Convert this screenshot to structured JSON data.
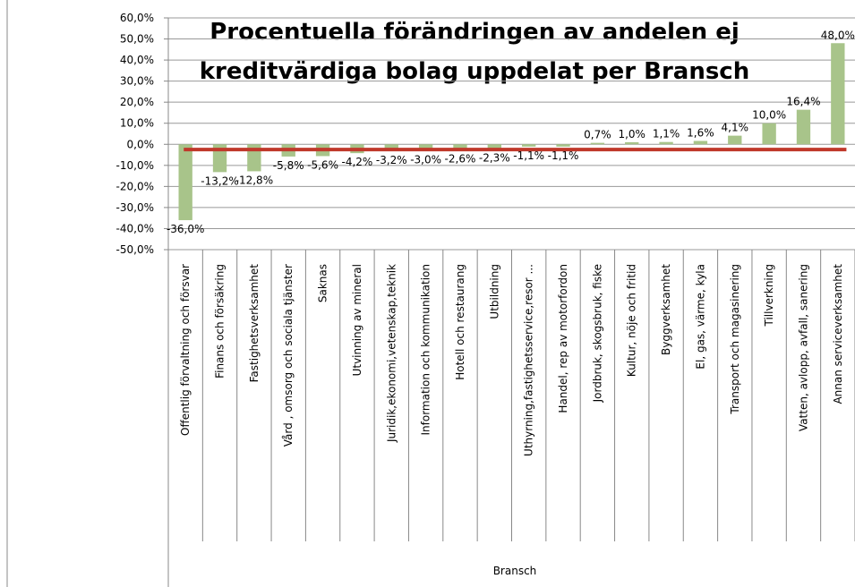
{
  "chart_data": {
    "type": "bar",
    "title": [
      "Procentuella förändringen av andelen ej",
      "kreditvärdiga bolag uppdelat per Bransch"
    ],
    "x_label": "Bransch",
    "categories": [
      "Offentlig förvaltning och försvar",
      "Finans och försäkring",
      "Fastighetsverksamhet",
      "Vård , omsorg och sociala tjänster",
      "Saknas",
      "Utvinning av mineral",
      "Juridik,ekonomi,vetenskap,teknik",
      "Information och kommunikation",
      "Hotell och restaurang",
      "Utbildning",
      "Uthyrning,fastighetsservice,resor ...",
      "Handel, rep av motorfordon",
      "Jordbruk, skogsbruk, fiske",
      "Kultur, nöje och fritid",
      "Byggverksamhet",
      "El, gas, värme, kyla",
      "Transport och magasinering",
      "Tillverkning",
      "Vatten, avlopp, avfall, sanering",
      "Annan serviceverksamhet"
    ],
    "values": [
      -36.0,
      -13.2,
      -12.8,
      -5.8,
      -5.6,
      -4.2,
      -3.2,
      -3.0,
      -2.6,
      -2.3,
      -1.1,
      -1.1,
      0.7,
      1.0,
      1.1,
      1.6,
      4.1,
      10.0,
      16.4,
      48.0
    ],
    "value_labels": [
      "-36,0%",
      "-13,2%",
      "-12,8%",
      "-5,8%",
      "-5,6%",
      "-4,2%",
      "-3,2%",
      "-3,0%",
      "-2,6%",
      "-2,3%",
      "-1,1%",
      "-1,1%",
      "0,7%",
      "1,0%",
      "1,1%",
      "1,6%",
      "4,1%",
      "10,0%",
      "16,4%",
      "48,0%"
    ],
    "color": "#a8c48a",
    "reference_line": {
      "value": -2.5,
      "color": "#c0392b"
    },
    "ylim": [
      -50,
      60
    ],
    "yticks": [
      {
        "value": -50,
        "label": "-50,0%"
      },
      {
        "value": -40,
        "label": "-40,0%"
      },
      {
        "value": -30,
        "label": "-30,0%"
      },
      {
        "value": -20,
        "label": "-20,0%"
      },
      {
        "value": -10,
        "label": "-10,0%"
      },
      {
        "value": 0,
        "label": "0,0%"
      },
      {
        "value": 10,
        "label": "10,0%"
      },
      {
        "value": 20,
        "label": "20,0%"
      },
      {
        "value": 30,
        "label": "30,0%"
      },
      {
        "value": 40,
        "label": "40,0%"
      },
      {
        "value": 50,
        "label": "50,0%"
      },
      {
        "value": 60,
        "label": "60,0%"
      }
    ],
    "grid": true
  }
}
